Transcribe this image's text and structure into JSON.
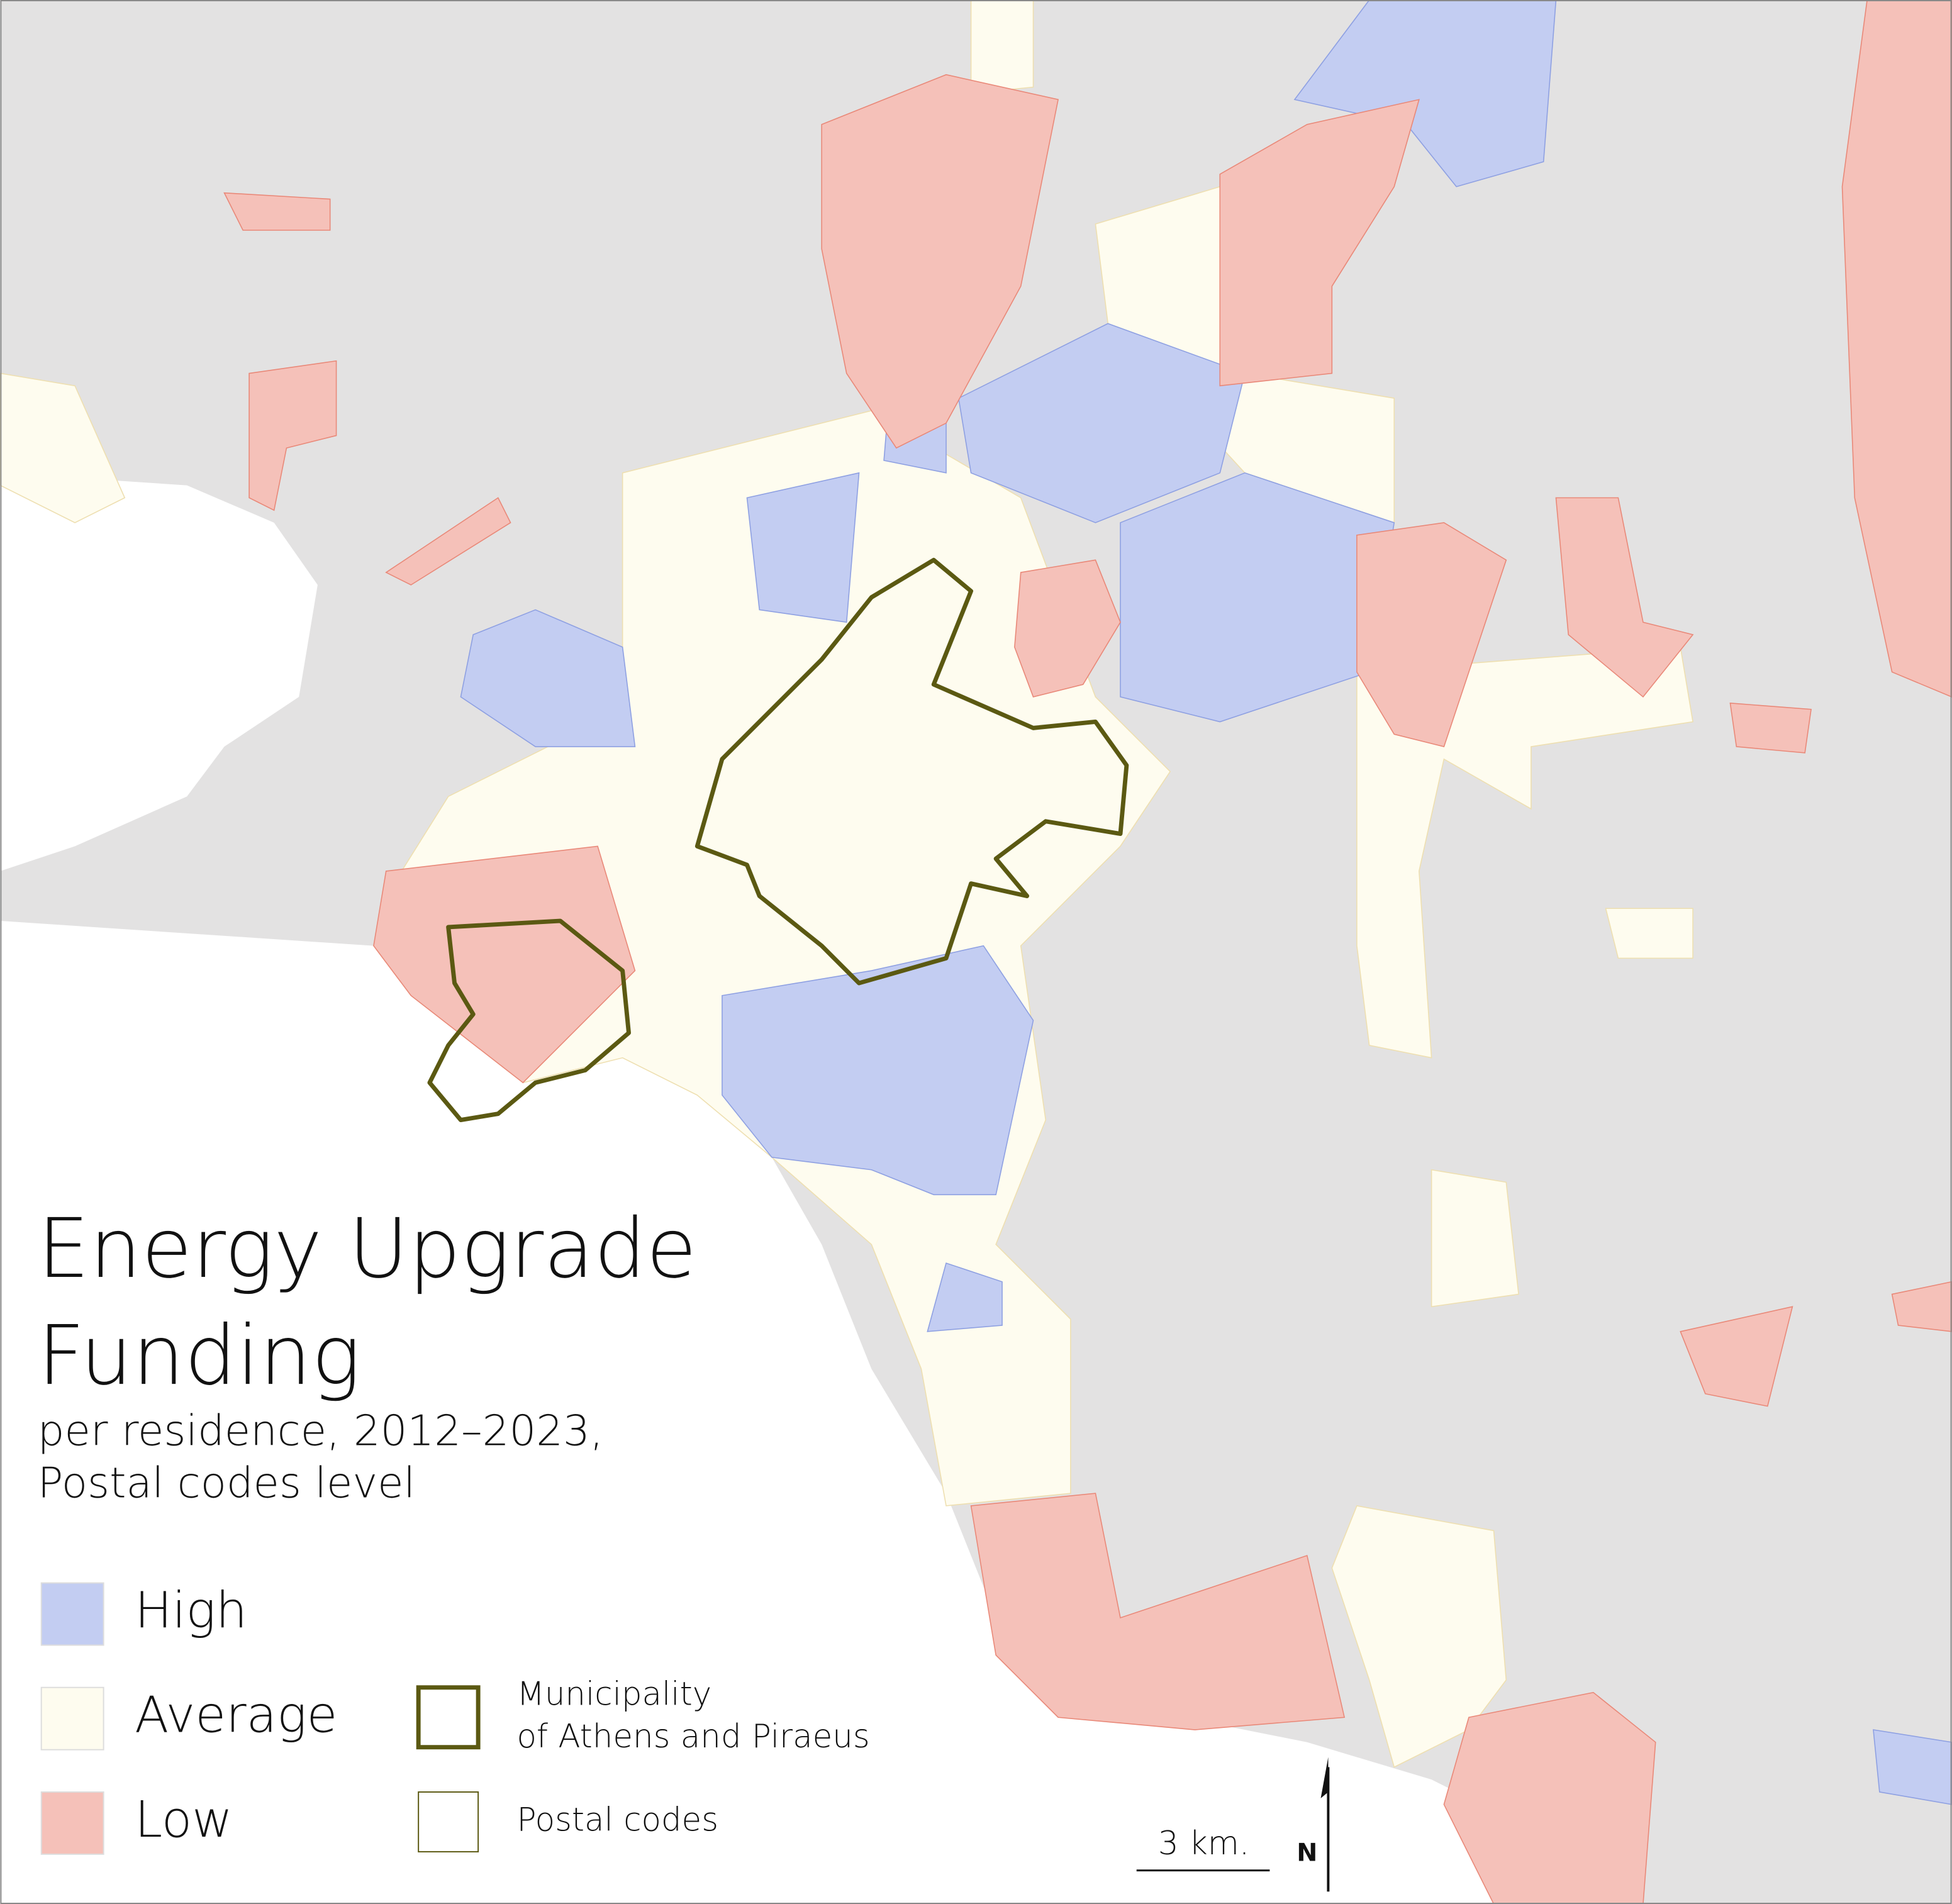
{
  "map": {
    "title": [
      "Energy Upgrade",
      "Funding"
    ],
    "subtitle": [
      "per residence, 2012–2023,",
      "Postal codes level"
    ],
    "legend": {
      "fill": [
        {
          "label": "High",
          "color": "#c3cdf2"
        },
        {
          "label": "Average",
          "color": "#fefcef"
        },
        {
          "label": "Low",
          "color": "#f5c1b9"
        }
      ],
      "outline": [
        {
          "label": [
            "Municipality",
            "of Athens and Piraeus"
          ],
          "color": "#5b5912"
        },
        {
          "label": [
            "Postal codes"
          ],
          "color": "#5b5912"
        }
      ]
    },
    "scale_bar": "3 km.",
    "north": "N"
  }
}
